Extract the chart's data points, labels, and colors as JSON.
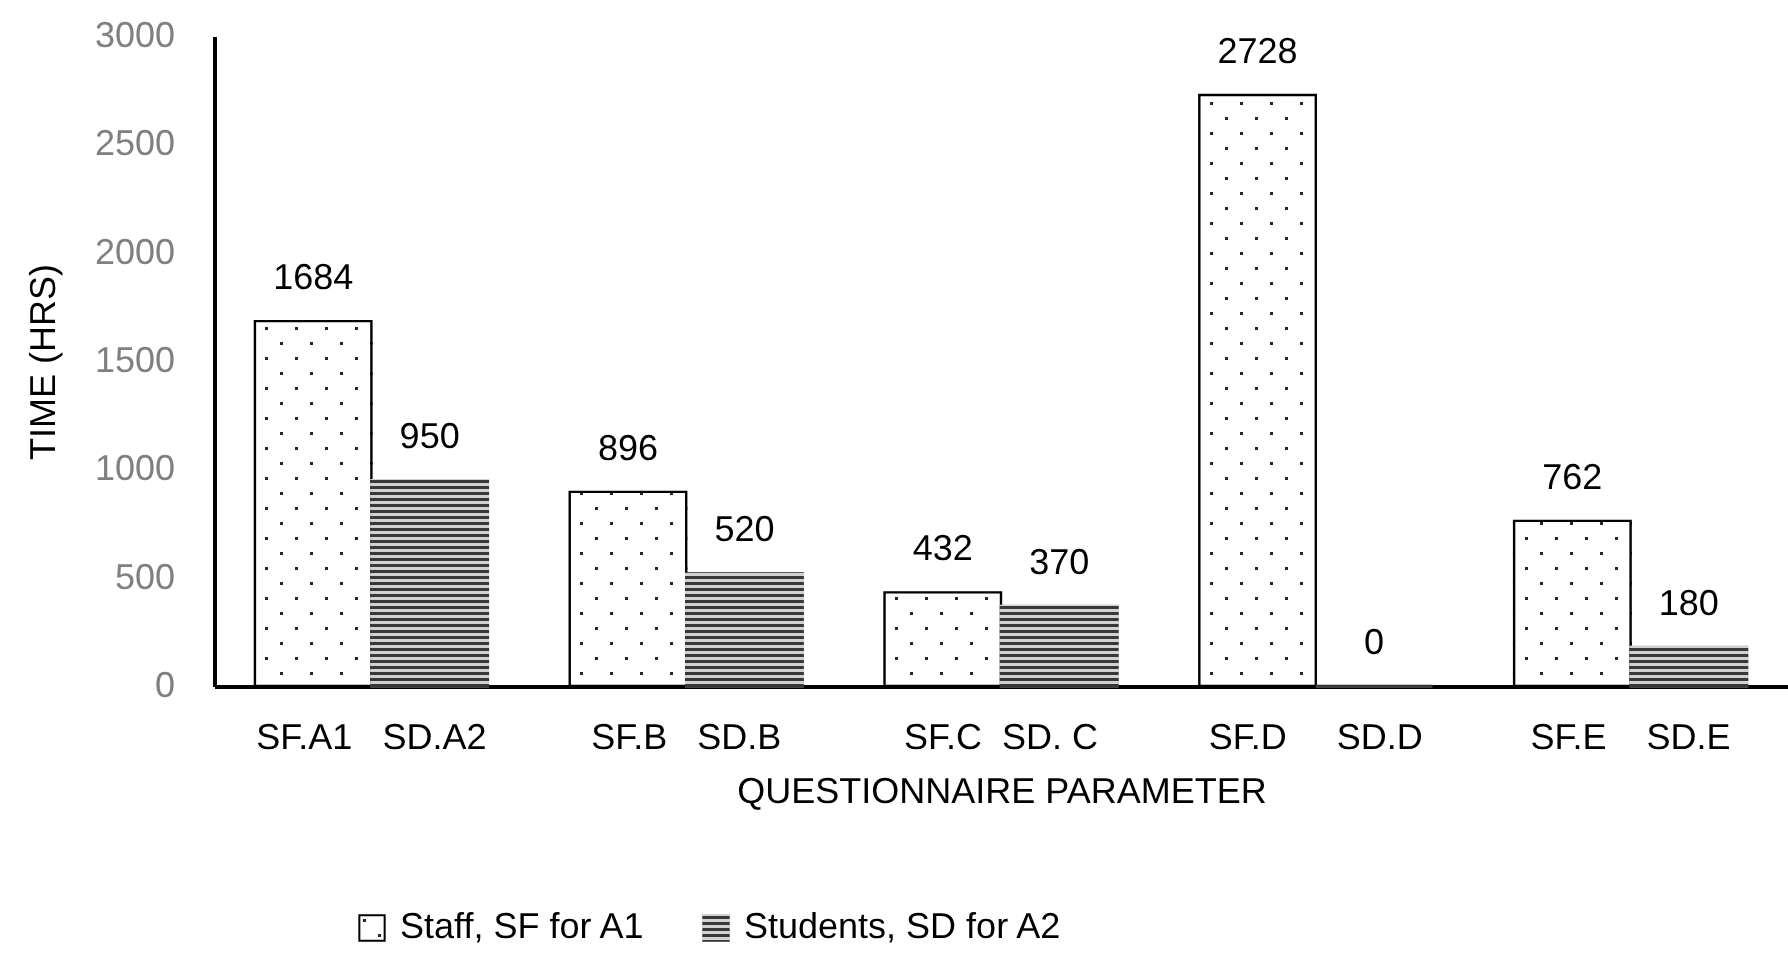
{
  "chart_data": {
    "type": "bar",
    "xlabel": "QUESTIONNAIRE PARAMETER",
    "ylabel": "TIME (HRS)",
    "categories": [
      "SF.A1   SD.A2",
      "SF.B   SD.B",
      "SF.C  SD. C",
      "SF.D     SD.D",
      "SF.E    SD.E"
    ],
    "series": [
      {
        "name": "Staff, SF for A1",
        "color": "#ffffff",
        "values": [
          1684,
          896,
          432,
          2728,
          762
        ]
      },
      {
        "name": "Students, SD for A2",
        "color": "#8c8c8c",
        "values": [
          950,
          520,
          370,
          0,
          180
        ]
      }
    ],
    "ylim": [
      0,
      3000
    ],
    "yticks": [
      0,
      500,
      1000,
      1500,
      2000,
      2500,
      3000
    ],
    "grid": false,
    "legend": "bottom",
    "data_labels": true
  }
}
